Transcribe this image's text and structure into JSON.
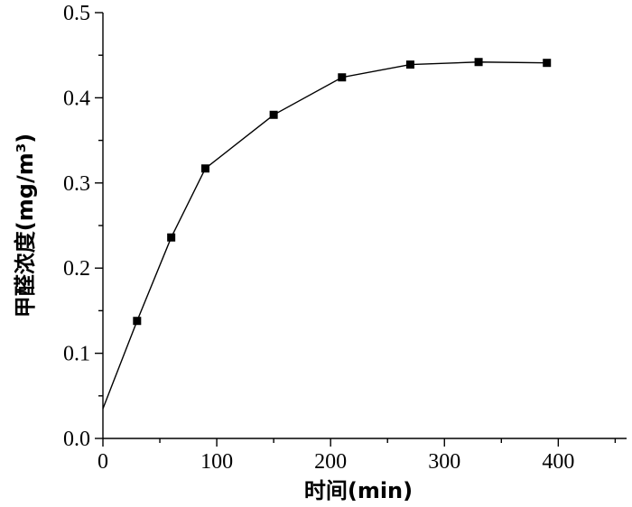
{
  "chart_data": {
    "type": "line",
    "title": "",
    "xlabel": "时间(min)",
    "ylabel": "甲醛浓度(mg/m³)",
    "xlim": [
      0,
      460
    ],
    "ylim": [
      0.0,
      0.5
    ],
    "x_ticks": [
      0,
      100,
      200,
      300,
      400
    ],
    "y_ticks": [
      0.0,
      0.1,
      0.2,
      0.3,
      0.4,
      0.5
    ],
    "x_tick_labels": [
      "0",
      "100",
      "200",
      "300",
      "400"
    ],
    "y_tick_labels": [
      "0.0",
      "0.1",
      "0.2",
      "0.3",
      "0.4",
      "0.5"
    ],
    "grid": false,
    "series": [
      {
        "marker": "square",
        "color": "#000000",
        "x": [
          30,
          60,
          90,
          150,
          210,
          270,
          330,
          390
        ],
        "y": [
          0.138,
          0.236,
          0.317,
          0.38,
          0.424,
          0.439,
          0.442,
          0.441
        ]
      }
    ],
    "curve_start": {
      "x": 0,
      "y": 0.035
    }
  }
}
